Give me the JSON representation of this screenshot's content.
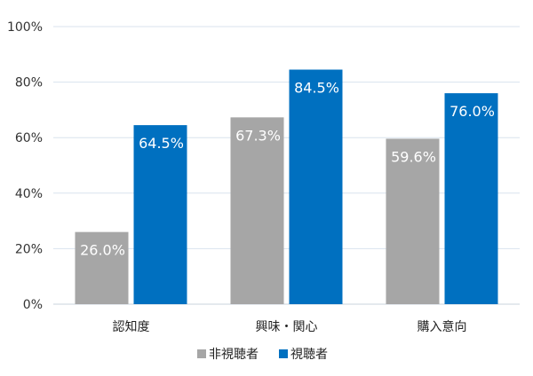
{
  "chart_data": {
    "type": "bar",
    "categories": [
      "認知度",
      "興味・関心",
      "購入意向"
    ],
    "series": [
      {
        "name": "非視聴者",
        "values": [
          26.0,
          67.3,
          59.6
        ],
        "labels": [
          "26.0%",
          "67.3%",
          "59.6%"
        ],
        "color": "#a6a6a6",
        "label_color": "#ffffff"
      },
      {
        "name": "視聴者",
        "values": [
          64.5,
          84.5,
          76.0
        ],
        "labels": [
          "64.5%",
          "84.5%",
          "76.0%"
        ],
        "color": "#0070c0",
        "label_color": "#ffffff"
      }
    ],
    "y_ticks": [
      0,
      20,
      40,
      60,
      80,
      100
    ],
    "y_tick_labels": [
      "0%",
      "20%",
      "40%",
      "60%",
      "80%",
      "100%"
    ],
    "ylim": [
      0,
      100
    ],
    "grid": true,
    "legend_position": "bottom",
    "gridline_color": "#d9e3ee",
    "title": "",
    "xlabel": "",
    "ylabel": ""
  }
}
